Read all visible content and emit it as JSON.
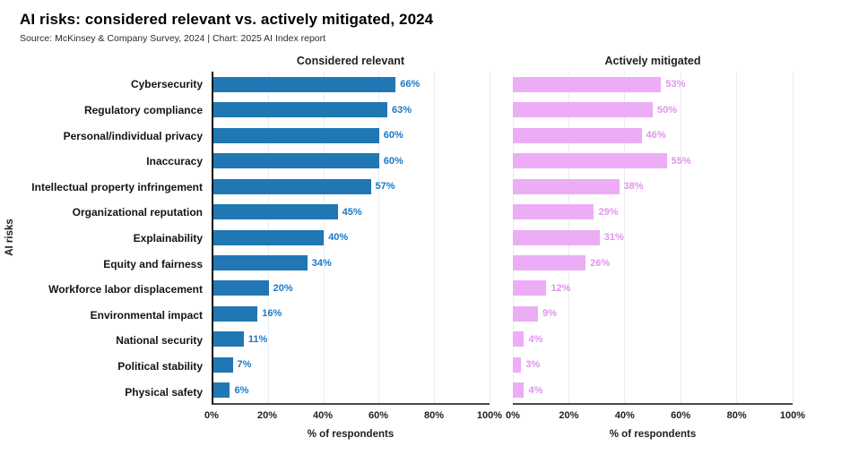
{
  "header": {
    "title": "AI risks: considered relevant vs. actively mitigated, 2024",
    "subtitle": "Source: McKinsey & Company Survey, 2024 | Chart: 2025 AI Index report"
  },
  "chart_data": {
    "type": "bar",
    "orientation": "horizontal",
    "title": "AI risks: considered relevant vs. actively mitigated, 2024",
    "source": "Source: McKinsey & Company Survey, 2024 | Chart: 2025 AI Index report",
    "ylabel": "AI risks",
    "xlabel": "% of respondents",
    "xlim": [
      0,
      100
    ],
    "xtick_step": 20,
    "xticks": [
      "0%",
      "20%",
      "40%",
      "60%",
      "80%",
      "100%"
    ],
    "grid": true,
    "value_suffix": "%",
    "categories": [
      "Cybersecurity",
      "Regulatory compliance",
      "Personal/individual privacy",
      "Inaccuracy",
      "Intellectual property infringement",
      "Organizational reputation",
      "Explainability",
      "Equity and fairness",
      "Workforce labor displacement",
      "Environmental impact",
      "National security",
      "Political stability",
      "Physical safety"
    ],
    "series": [
      {
        "name": "Considered relevant",
        "bar_color": "#2077b4",
        "label_color": "#1779c9",
        "values": [
          66,
          63,
          60,
          60,
          57,
          45,
          40,
          34,
          20,
          16,
          11,
          7,
          6
        ]
      },
      {
        "name": "Actively mitigated",
        "bar_color": "#ecadf6",
        "label_color": "#e094ee",
        "values": [
          53,
          50,
          46,
          55,
          38,
          29,
          31,
          26,
          12,
          9,
          4,
          3,
          4
        ]
      }
    ]
  }
}
